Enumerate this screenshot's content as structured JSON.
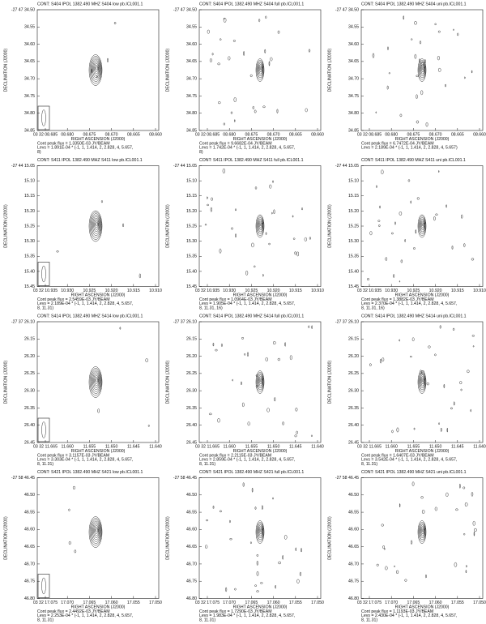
{
  "panels": [
    {
      "title": "CONT: S404  IPOL  1382.490 MHZ  S404 low pb.ICL001.1",
      "ylabel": "DECLINATION (J2000)",
      "xlabel": "RIGHT ASCENSION (J2000)",
      "yticks": [
        "-27 47 34.50",
        "34.55",
        "34.60",
        "34.65",
        "34.70",
        "34.75",
        "34.80",
        "34.85"
      ],
      "xticks": [
        "03 32 08.685",
        "08.680",
        "08.675",
        "08.670",
        "08.665",
        "08.660"
      ],
      "caption": [
        "Cont peak flux =  1.3350E-03 JY/BEAM",
        "Levs = 1.891E-04 * (-1, 1, 1.414, 2, 2.828, 4, 5.657,",
        "8)"
      ]
    },
    {
      "title": "CONT: S404  IPOL  1382.490 MHZ  S404 full pb.ICL001.1",
      "ylabel": "DECLINATION (J2000)",
      "xlabel": "RIGHT ASCENSION (J2000)",
      "yticks": [
        "-27 47 34.50",
        "34.55",
        "34.60",
        "34.65",
        "34.70",
        "34.75",
        "34.80",
        "34.85"
      ],
      "xticks": [
        "03 32 08.685",
        "08.680",
        "08.675",
        "08.670",
        "08.665",
        "08.660"
      ],
      "caption": [
        "Cont peak flux =  9.6682E-04 JY/BEAM",
        "Levs = 1.742E-04 * (-1, 1, 1.414, 2, 2.828, 4, 5.657,",
        "8)"
      ]
    },
    {
      "title": "CONT: S404  IPOL  1382.490 MHZ  S404 uni pb.ICL001.1",
      "ylabel": "DECLINATION (J2000)",
      "xlabel": "RIGHT ASCENSION (J2000)",
      "yticks": [
        "-27 47 34.50",
        "34.55",
        "34.60",
        "34.65",
        "34.70",
        "34.75",
        "34.80",
        "34.85"
      ],
      "xticks": [
        "03 32 08.685",
        "08.680",
        "08.675",
        "08.670",
        "08.665",
        "08.660"
      ],
      "caption": [
        "Cont peak flux =  6.7472E-04 JY/BEAM",
        "Levs = 2.189E-04 * (-1, 1, 1.414, 2, 2.828, 4, 5.657)"
      ]
    },
    {
      "title": "CONT: S411  IPOL  1382.490 MHZ  S411 low pb.ICL001.1",
      "ylabel": "DECLINATION (J2000)",
      "xlabel": "RIGHT ASCENSION (J2000)",
      "yticks": [
        "-27 44 15.05",
        "15.10",
        "15.15",
        "15.20",
        "15.25",
        "15.30",
        "15.35",
        "15.40",
        "15.45"
      ],
      "xticks": [
        "03 32 10.935",
        "10.930",
        "10.925",
        "10.920",
        "10.915",
        "10.910"
      ],
      "caption": [
        "Cont peak flux =  2.5459E-03 JY/BEAM",
        "Levs = 2.189E-04 * (-1, 1, 1.414, 2, 2.828, 4, 5.657,",
        "8, 11.31)"
      ]
    },
    {
      "title": "CONT: S411  IPOL  1382.490 MHZ  S411 full pb.ICL001.1",
      "ylabel": "DECLINATION (J2000)",
      "xlabel": "RIGHT ASCENSION (J2000)",
      "yticks": [
        "-27 44 15.05",
        "15.10",
        "15.15",
        "15.20",
        "15.25",
        "15.30",
        "15.35",
        "15.40",
        "15.45"
      ],
      "xticks": [
        "03 32 10.935",
        "10.930",
        "10.925",
        "10.920",
        "10.915",
        "10.910"
      ],
      "caption": [
        "Cont peak flux =  1.0964E-03 JY/BEAM",
        "Levs = 1.905E-04 * (-1, 1, 1.414, 2, 2.828, 4, 5.657,",
        "8, 11.31, 16)"
      ]
    },
    {
      "title": "CONT: S411  IPOL  1382.490 MHZ  S411 uni pb.ICL001.1",
      "ylabel": "DECLINATION (J2000)",
      "xlabel": "RIGHT ASCENSION (J2000)",
      "yticks": [
        "-27 44 15.05",
        "15.10",
        "15.15",
        "15.20",
        "15.25",
        "15.30",
        "15.35",
        "15.40",
        "15.45"
      ],
      "xticks": [
        "03 32 10.935",
        "10.930",
        "10.925",
        "10.920",
        "10.915",
        "10.910"
      ],
      "caption": [
        "Cont peak flux =  1.3882E-03 JY/BEAM",
        "Levs = 2.370E-04 * (-1, 1, 1.414, 2, 2.828, 4, 5.657,",
        "8, 11.31, 16)"
      ]
    },
    {
      "title": "CONT: S414  IPOL  1382.490 MHZ  S414 low pb.ICL001.1",
      "ylabel": "DECLINATION (J2000)",
      "xlabel": "RIGHT ASCENSION (J2000)",
      "yticks": [
        "-27 37 26.10",
        "26.15",
        "26.20",
        "26.25",
        "26.30",
        "26.35",
        "26.40",
        "26.45"
      ],
      "xticks": [
        "03 32 11.665",
        "11.660",
        "11.655",
        "11.650",
        "11.645",
        "11.640"
      ],
      "caption": [
        "Cont peak flux =  3.1157E-03 JY/BEAM",
        "Levs = 3.303E-04 * (-1, 1, 1.414, 2, 2.828, 4, 5.657,",
        "8, 11.31)"
      ]
    },
    {
      "title": "CONT: S414  IPOL  1382.490 MHZ  S414 full pb.ICL001.1",
      "ylabel": "DECLINATION (J2000)",
      "xlabel": "RIGHT ASCENSION (J2000)",
      "yticks": [
        "-27 37 26.10",
        "26.15",
        "26.20",
        "26.25",
        "26.30",
        "26.35",
        "26.40",
        "26.45"
      ],
      "xticks": [
        "03 32 11.665",
        "11.660",
        "11.655",
        "11.650",
        "11.645",
        "11.640"
      ],
      "caption": [
        "Cont peak flux =  2.2115E-03 JY/BEAM",
        "Levs = 2.859E-04 * (-1, 1, 1.414, 2, 2.828, 4, 5.657,",
        "8, 11.31)"
      ]
    },
    {
      "title": "CONT: S414  IPOL  1382.490 MHZ  S414 uni pb.ICL001.1",
      "ylabel": "DECLINATION (J2000)",
      "xlabel": "RIGHT ASCENSION (J2000)",
      "yticks": [
        "-27 37 26.10",
        "26.15",
        "26.20",
        "26.25",
        "26.30",
        "26.35",
        "26.40",
        "26.45"
      ],
      "xticks": [
        "03 32 11.665",
        "11.660",
        "11.655",
        "11.650",
        "11.645",
        "11.640"
      ],
      "caption": [
        "Cont peak flux =  1.6407E-03 JY/BEAM",
        "Levs = 3.542E-04 * (-1, 1, 1.414, 2, 2.828, 4, 5.657,",
        "8, 11.31)"
      ]
    },
    {
      "title": "CONT: S421  IPOL  1382.490 MHZ  S421 low pb.ICL001.1",
      "ylabel": "DECLINATION (J2000)",
      "xlabel": "RIGHT ASCENSION (J2000)",
      "yticks": [
        "-27 58 46.45",
        "46.50",
        "46.55",
        "46.60",
        "46.65",
        "46.70",
        "46.75",
        "46.80"
      ],
      "xticks": [
        "03 32 17.075",
        "17.070",
        "17.065",
        "17.060",
        "17.055",
        "17.050"
      ],
      "caption": [
        "Cont peak flux =  2.4492E-03 JY/BEAM",
        "Levs = 2.253E-04 * (-1, 1, 1.414, 2, 2.828, 4, 5.657,",
        "8, 11.31)"
      ]
    },
    {
      "title": "CONT: S421  IPOL  1382.490 MHZ  S421 full pb.ICL001.1",
      "ylabel": "DECLINATION (J2000)",
      "xlabel": "RIGHT ASCENSION (J2000)",
      "yticks": [
        "-27 58 46.45",
        "46.50",
        "46.55",
        "46.60",
        "46.65",
        "46.70",
        "46.75",
        "46.80"
      ],
      "xticks": [
        "03 32 17.075",
        "17.070",
        "17.065",
        "17.060",
        "17.055",
        "17.050"
      ],
      "caption": [
        "Cont peak flux =  1.7290E-03 JY/BEAM",
        "Levs = 1.983E-04 * (-1, 1, 1.414, 2, 2.828, 4, 5.657,",
        "8, 11.31)"
      ]
    },
    {
      "title": "CONT: S421  IPOL  1382.490 MHZ  S421 uni pb.ICL001.1",
      "ylabel": "DECLINATION (J2000)",
      "xlabel": "RIGHT ASCENSION (J2000)",
      "yticks": [
        "-27 58 46.45",
        "46.50",
        "46.55",
        "46.60",
        "46.65",
        "46.70",
        "46.75",
        "46.80"
      ],
      "xticks": [
        "03 32 17.075",
        "17.070",
        "17.065",
        "17.060",
        "17.055",
        "17.050"
      ],
      "caption": [
        "Cont peak flux =  1.1193E-03 JY/BEAM",
        "Levs = 2.430E-04 * (-1, 1, 1.414, 2, 2.828, 4, 5.657,",
        "8, 11.31)"
      ]
    }
  ]
}
